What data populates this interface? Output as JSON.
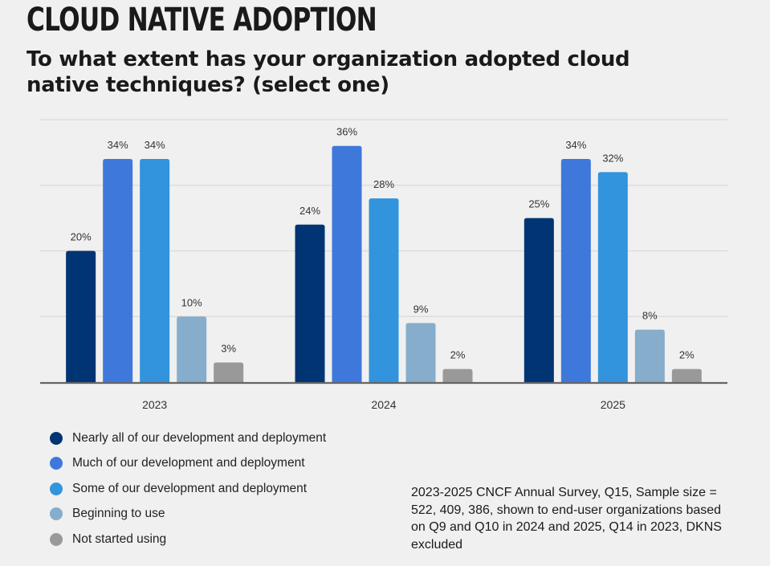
{
  "title": "CLOUD NATIVE ADOPTION",
  "subtitle": "To what extent has your organization adopted cloud native techniques? (select one)",
  "note": "2023-2025 CNCF Annual Survey, Q15, Sample size = 522, 409, 386, shown to end-user organizations based on Q9 and Q10 in 2024 and 2025, Q14 in 2023, DKNS excluded",
  "chart_data": {
    "type": "bar",
    "categories": [
      "2023",
      "2024",
      "2025"
    ],
    "series": [
      {
        "name": "Nearly all of our development and deployment",
        "color": "#003473",
        "values": [
          20,
          24,
          25
        ],
        "labels": [
          "20%",
          "24%",
          "25%"
        ]
      },
      {
        "name": "Much of our development and deployment",
        "color": "#3f78db",
        "values": [
          34,
          36,
          34
        ],
        "labels": [
          "34%",
          "36%",
          "34%"
        ]
      },
      {
        "name": "Some of our development and deployment",
        "color": "#3194dc",
        "values": [
          34,
          28,
          32
        ],
        "labels": [
          "34%",
          "28%",
          "32%"
        ]
      },
      {
        "name": "Beginning to use",
        "color": "#86adcb",
        "values": [
          10,
          9,
          8
        ],
        "labels": [
          "10%",
          "9%",
          "8%"
        ]
      },
      {
        "name": "Not started using",
        "color": "#999999",
        "values": [
          3,
          2,
          2
        ],
        "labels": [
          "3%",
          "2%",
          "2%"
        ]
      }
    ],
    "ylim": [
      0,
      40
    ],
    "grid": true,
    "legend_placement": "bottom-left"
  }
}
